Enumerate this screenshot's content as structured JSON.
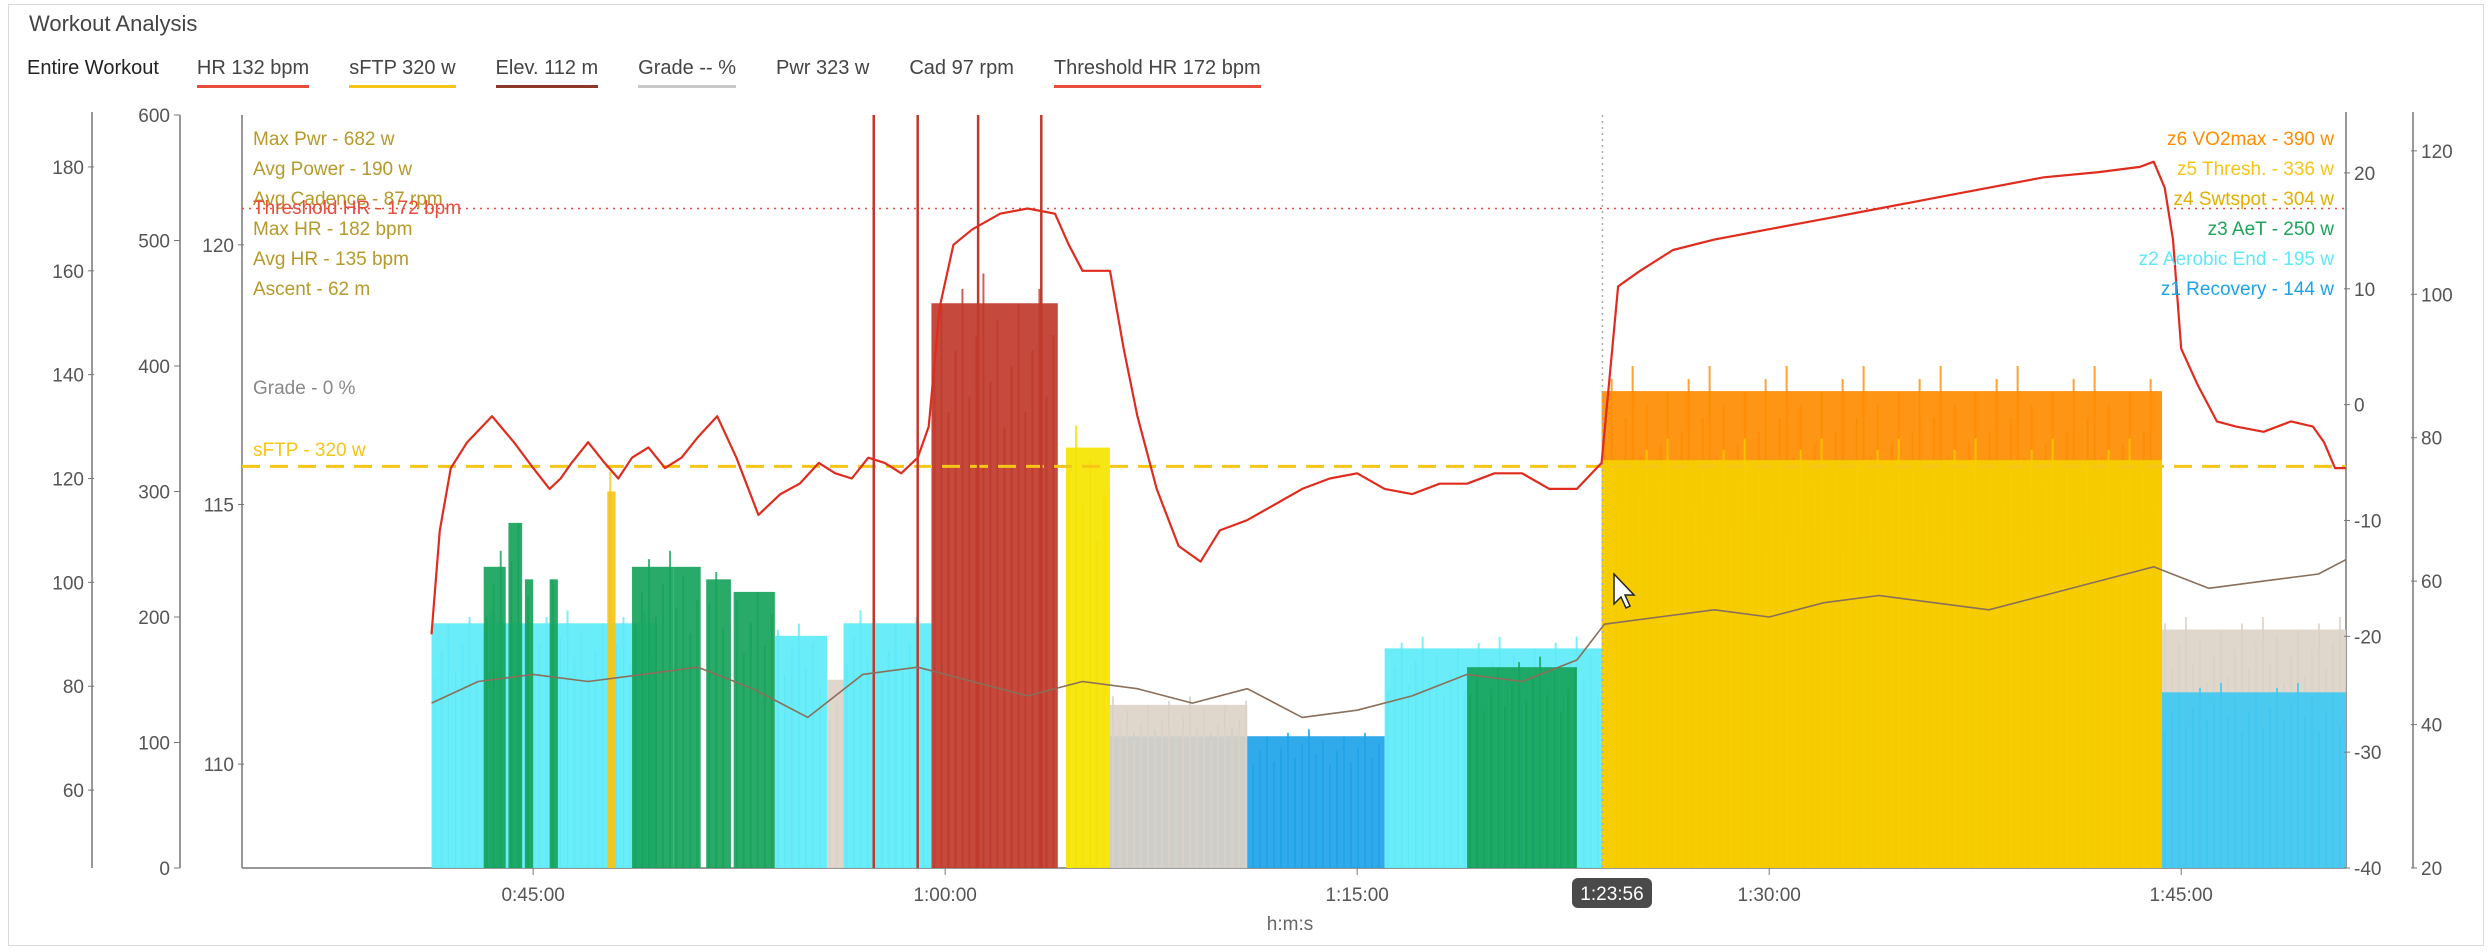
{
  "window": {
    "title": "Workout Analysis"
  },
  "toolbar": {
    "items": [
      {
        "label": "Entire Workout",
        "underline": "none"
      },
      {
        "label": "HR  132 bpm",
        "underline": "#e74c3c"
      },
      {
        "label": "sFTP  320 w",
        "underline": "#f5c518"
      },
      {
        "label": "Elev.  112 m",
        "underline": "#8b3a2a"
      },
      {
        "label": "Grade  -- %",
        "underline": "#c8c8c8"
      },
      {
        "label": "Pwr  323 w",
        "underline": "none"
      },
      {
        "label": "Cad  97 rpm",
        "underline": "none"
      },
      {
        "label": "Threshold HR  172 bpm",
        "underline": "#e74c3c"
      }
    ]
  },
  "chart_data": {
    "type": "area",
    "xlabel": "h:m:s",
    "x_ticks": [
      "0:45:00",
      "1:00:00",
      "1:15:00",
      "1:30:00",
      "1:45:00"
    ],
    "x_tick_minutes": [
      45,
      60,
      75,
      90,
      105
    ],
    "x_range_minutes": [
      34.4,
      111.0
    ],
    "data_start_minutes": 41.3,
    "cursor": {
      "label": "1:23:56",
      "minutes": 83.93
    },
    "axes": {
      "hr": {
        "ticks": [
          "60",
          "80",
          "100",
          "120",
          "140",
          "160",
          "180"
        ],
        "range": [
          45,
          190
        ]
      },
      "power": {
        "ticks": [
          "0",
          "100",
          "200",
          "300",
          "400",
          "500",
          "600"
        ],
        "range": [
          0,
          600
        ]
      },
      "elevation": {
        "ticks": [
          "110",
          "115",
          "120"
        ],
        "range": [
          108,
          122.5
        ]
      },
      "grade": {
        "ticks": [
          "-40",
          "-30",
          "-20",
          "-10",
          "0",
          "10",
          "20"
        ],
        "range": [
          -40,
          25
        ]
      },
      "cadence": {
        "ticks": [
          "20",
          "40",
          "60",
          "80",
          "100",
          "120"
        ],
        "range": [
          20,
          125
        ]
      }
    },
    "summary_labels": [
      {
        "text": "Max Pwr - 682 w",
        "color": "#b59a2a"
      },
      {
        "text": "Avg Power - 190 w",
        "color": "#b59a2a"
      },
      {
        "text": "Avg Cadence - 87 rpm",
        "color": "#b59a2a"
      },
      {
        "text": "Max HR - 182 bpm",
        "color": "#b59a2a"
      },
      {
        "text": "Avg HR - 135 bpm",
        "color": "#b59a2a"
      },
      {
        "text": "Ascent - 62 m",
        "color": "#b59a2a"
      }
    ],
    "threshold_hr": {
      "label": "Threshold HR - 172 bpm",
      "value": 172,
      "color": "#e74c3c"
    },
    "sftp": {
      "label": "sFTP - 320 w",
      "value": 320,
      "color": "#f5c518"
    },
    "grade_label": "Grade - 0 %",
    "zones": [
      {
        "label": "z6 VO2max - 390 w",
        "color": "#ff8c00"
      },
      {
        "label": "z5 Thresh. - 336 w",
        "color": "#f5c518"
      },
      {
        "label": "z4 Swtspot - 304 w",
        "color": "#e0b000"
      },
      {
        "label": "z3 AeT - 250 w",
        "color": "#1ea35a"
      },
      {
        "label": "z2 Aerobic End - 195 w",
        "color": "#5ee8f8"
      },
      {
        "label": "z1 Recovery - 144 w",
        "color": "#1ea3e8"
      }
    ],
    "power_segments": [
      {
        "start": 41.3,
        "end": 49.5,
        "power": 195,
        "color": "#5eeaf9"
      },
      {
        "start": 43.2,
        "end": 44.0,
        "power": 240,
        "color": "#17a35b"
      },
      {
        "start": 44.1,
        "end": 44.6,
        "power": 275,
        "color": "#17a35b"
      },
      {
        "start": 44.7,
        "end": 45.0,
        "power": 230,
        "color": "#17a35b"
      },
      {
        "start": 45.6,
        "end": 45.9,
        "power": 230,
        "color": "#17a35b"
      },
      {
        "start": 47.7,
        "end": 48.0,
        "power": 300,
        "color": "#f5c518"
      },
      {
        "start": 48.6,
        "end": 50.1,
        "power": 240,
        "color": "#17a35b"
      },
      {
        "start": 50.1,
        "end": 51.1,
        "power": 240,
        "color": "#17a35b"
      },
      {
        "start": 51.3,
        "end": 52.2,
        "power": 230,
        "color": "#17a35b"
      },
      {
        "start": 52.3,
        "end": 53.8,
        "power": 220,
        "color": "#17a35b"
      },
      {
        "start": 53.8,
        "end": 55.7,
        "power": 185,
        "color": "#5eeaf9"
      },
      {
        "start": 55.7,
        "end": 56.3,
        "power": 150,
        "color": "#dcd2c8"
      },
      {
        "start": 56.3,
        "end": 59.5,
        "power": 195,
        "color": "#5eeaf9"
      },
      {
        "start": 59.5,
        "end": 64.1,
        "power": 450,
        "color": "#c0392b"
      },
      {
        "start": 64.4,
        "end": 66.0,
        "power": 335,
        "color": "#f5e400"
      },
      {
        "start": 66.0,
        "end": 76.0,
        "power": 105,
        "color": "#1ea3e8"
      },
      {
        "start": 66.0,
        "end": 71.0,
        "power": 130,
        "color": "#dcd2c8"
      },
      {
        "start": 76.0,
        "end": 83.9,
        "power": 175,
        "color": "#5eeaf9"
      },
      {
        "start": 79.0,
        "end": 83.0,
        "power": 160,
        "color": "#17a35b"
      },
      {
        "start": 83.9,
        "end": 104.3,
        "power": 380,
        "color": "#ff8c00"
      },
      {
        "start": 83.9,
        "end": 104.3,
        "power": 325,
        "color": "#f5d000"
      },
      {
        "start": 104.3,
        "end": 111.0,
        "power": 190,
        "color": "#dcd2c8"
      },
      {
        "start": 104.3,
        "end": 111.0,
        "power": 140,
        "color": "#3fc8f2"
      }
    ],
    "series": [
      {
        "name": "HR",
        "axis": "hr",
        "color": "#e02c1f",
        "x": [
          41.3,
          41.6,
          42.0,
          42.6,
          43.5,
          44.3,
          45.0,
          45.6,
          46.0,
          46.4,
          47.0,
          47.6,
          48.1,
          48.6,
          49.2,
          49.8,
          50.4,
          51.0,
          51.7,
          52.4,
          53.2,
          54.0,
          54.7,
          55.4,
          56.0,
          56.6,
          57.2,
          57.8,
          58.4,
          59.0,
          59.4,
          59.8,
          60.3,
          61.0,
          62.0,
          63.0,
          64.0,
          64.5,
          65.0,
          66.0,
          66.5,
          67.0,
          67.7,
          68.5,
          69.3,
          70.0,
          71.0,
          72.0,
          73.0,
          74.0,
          75.0,
          76.0,
          77.0,
          78.0,
          79.0,
          80.0,
          81.0,
          82.0,
          83.0,
          83.9,
          84.5,
          85.3,
          86.5,
          88.0,
          90.0,
          92.0,
          94.0,
          96.0,
          98.0,
          100.0,
          102.0,
          103.5,
          104.0,
          104.4,
          104.7,
          105.0,
          105.6,
          106.3,
          107.0,
          108.0,
          109.0,
          109.8,
          110.2,
          110.6,
          111.0
        ],
        "y": [
          90,
          110,
          122,
          127,
          132,
          127,
          122,
          118,
          120,
          123,
          127,
          123,
          120,
          124,
          126,
          122,
          124,
          128,
          132,
          124,
          113,
          117,
          119,
          123,
          121,
          120,
          124,
          123,
          121,
          124,
          130,
          153,
          165,
          168,
          171,
          172,
          171,
          165,
          160,
          160,
          145,
          132,
          118,
          107,
          104,
          110,
          112,
          115,
          118,
          120,
          121,
          118,
          117,
          119,
          119,
          121,
          121,
          118,
          118,
          123,
          157,
          160,
          164,
          166,
          168,
          170,
          172,
          174,
          176,
          178,
          179,
          180,
          181,
          176,
          166,
          145,
          138,
          131,
          130,
          129,
          131,
          130,
          127,
          122,
          122
        ]
      },
      {
        "name": "Cadence",
        "axis": "cadence",
        "color": "#8a6f5a",
        "x": [
          41.3,
          43.0,
          45.0,
          47.0,
          49.0,
          51.0,
          53.0,
          55.0,
          57.0,
          59.0,
          61.0,
          63.0,
          65.0,
          67.0,
          69.0,
          71.0,
          73.0,
          75.0,
          77.0,
          79.0,
          81.0,
          83.0,
          84.0,
          86.0,
          88.0,
          90.0,
          92.0,
          94.0,
          96.0,
          98.0,
          100.0,
          102.0,
          104.0,
          106.0,
          108.0,
          110.0,
          111.0
        ],
        "y": [
          43,
          46,
          47,
          46,
          47,
          48,
          45,
          41,
          47,
          48,
          46,
          44,
          46,
          45,
          43,
          45,
          41,
          42,
          44,
          47,
          46,
          49,
          54,
          55,
          56,
          55,
          57,
          58,
          57,
          56,
          58,
          60,
          62,
          59,
          60,
          61,
          63
        ]
      }
    ]
  },
  "colors": {
    "hr": "#e02c1f",
    "sftp": "#f5c518",
    "elevation": "#8b3a2a",
    "grade": "#c8c8c8"
  }
}
